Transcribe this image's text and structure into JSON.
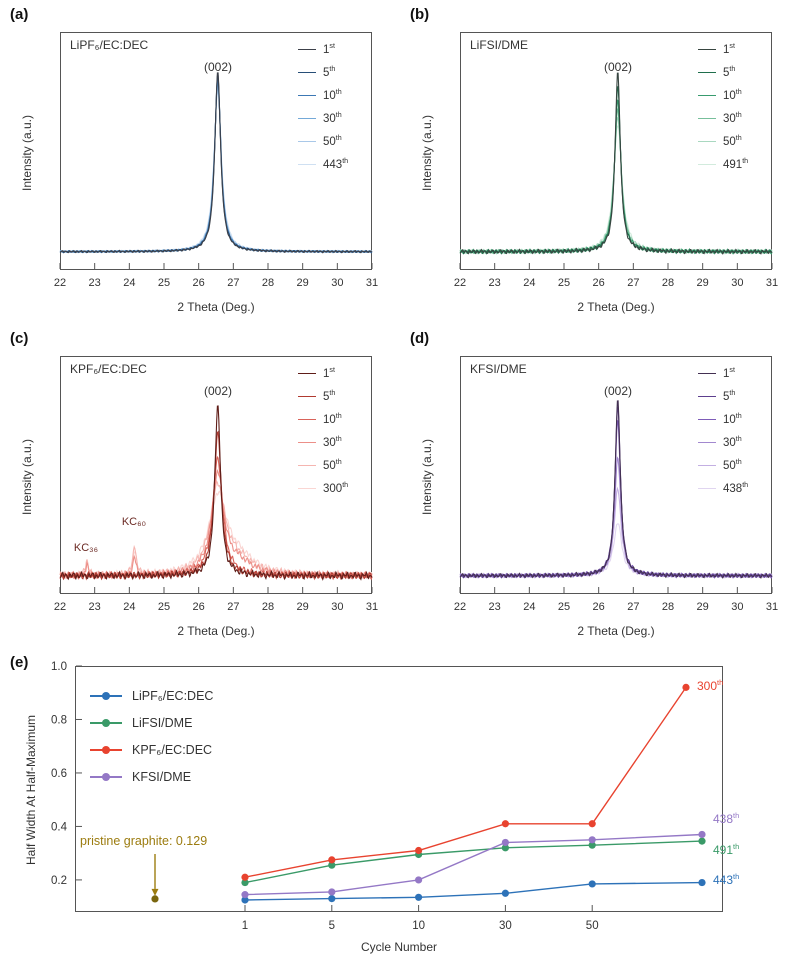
{
  "panels": {
    "a": {
      "label": "(a)",
      "electrolyte": "LiPF₆/EC:DEC",
      "peak_label": "(002)",
      "xlabel": "2 Theta (Deg.)",
      "ylabel": "Intensity (a.u.)"
    },
    "b": {
      "label": "(b)",
      "electrolyte": "LiFSI/DME",
      "peak_label": "(002)",
      "xlabel": "2 Theta (Deg.)",
      "ylabel": "Intensity (a.u.)"
    },
    "c": {
      "label": "(c)",
      "electrolyte": "KPF₆/EC:DEC",
      "peak_label": "(002)",
      "xlabel": "2 Theta (Deg.)",
      "ylabel": "Intensity (a.u.)",
      "annotations": [
        {
          "text": "KC₃₆",
          "x": 22.75
        },
        {
          "text": "KC₆₀",
          "x": 24.15
        }
      ]
    },
    "d": {
      "label": "(d)",
      "electrolyte": "KFSI/DME",
      "peak_label": "(002)",
      "xlabel": "2 Theta (Deg.)",
      "ylabel": "Intensity (a.u.)"
    },
    "e": {
      "label": "(e)",
      "xlabel": "Cycle Number",
      "ylabel": "Half Width At Half-Maximum"
    }
  },
  "chart_data": [
    {
      "panel": "a",
      "type": "line",
      "title": "LiPF₆/EC:DEC",
      "xlabel": "2 Theta (Deg.)",
      "ylabel": "Intensity (a.u.)",
      "x_range": [
        22,
        31
      ],
      "x_ticks": [
        22,
        23,
        24,
        25,
        26,
        27,
        28,
        29,
        30,
        31
      ],
      "peak_label": "(002)",
      "peak_center": 26.55,
      "noise": 0.006,
      "series": [
        {
          "cycle": "1",
          "ord": "st",
          "color": "#3c4049",
          "amp": 0.95,
          "width": 0.1
        },
        {
          "cycle": "5",
          "ord": "th",
          "color": "#274e77",
          "amp": 0.93,
          "width": 0.105
        },
        {
          "cycle": "10",
          "ord": "th",
          "color": "#3c78b4",
          "amp": 0.91,
          "width": 0.11
        },
        {
          "cycle": "30",
          "ord": "th",
          "color": "#74a9d8",
          "amp": 0.89,
          "width": 0.115
        },
        {
          "cycle": "50",
          "ord": "th",
          "color": "#a9c8e8",
          "amp": 0.87,
          "width": 0.12
        },
        {
          "cycle": "443",
          "ord": "th",
          "color": "#cfe0f2",
          "amp": 0.85,
          "width": 0.13
        }
      ]
    },
    {
      "panel": "b",
      "type": "line",
      "title": "LiFSI/DME",
      "xlabel": "2 Theta (Deg.)",
      "ylabel": "Intensity (a.u.)",
      "x_range": [
        22,
        31
      ],
      "x_ticks": [
        22,
        23,
        24,
        25,
        26,
        27,
        28,
        29,
        30,
        31
      ],
      "peak_label": "(002)",
      "peak_center": 26.55,
      "noise": 0.012,
      "series": [
        {
          "cycle": "1",
          "ord": "st",
          "color": "#374540",
          "amp": 0.95,
          "width": 0.09
        },
        {
          "cycle": "5",
          "ord": "th",
          "color": "#1f6e4c",
          "amp": 0.87,
          "width": 0.1
        },
        {
          "cycle": "10",
          "ord": "th",
          "color": "#389b6e",
          "amp": 0.8,
          "width": 0.11
        },
        {
          "cycle": "30",
          "ord": "th",
          "color": "#77bf9b",
          "amp": 0.75,
          "width": 0.12
        },
        {
          "cycle": "50",
          "ord": "th",
          "color": "#a9d8c0",
          "amp": 0.71,
          "width": 0.13
        },
        {
          "cycle": "491",
          "ord": "th",
          "color": "#d2ebdd",
          "amp": 0.67,
          "width": 0.145
        }
      ]
    },
    {
      "panel": "c",
      "type": "line",
      "title": "KPF₆/EC:DEC",
      "xlabel": "2 Theta (Deg.)",
      "ylabel": "Intensity (a.u.)",
      "x_range": [
        22,
        31
      ],
      "x_ticks": [
        22,
        23,
        24,
        25,
        26,
        27,
        28,
        29,
        30,
        31
      ],
      "peak_label": "(002)",
      "peak_center": 26.55,
      "noise": 0.02,
      "secondary_peaks": [
        {
          "label": "KC₃₆",
          "center": 22.78
        },
        {
          "label": "KC₆₀",
          "center": 24.15
        }
      ],
      "series": [
        {
          "cycle": "1",
          "ord": "st",
          "color": "#5f1d18",
          "amp": 0.9,
          "width": 0.1
        },
        {
          "cycle": "5",
          "ord": "th",
          "color": "#b03a30",
          "amp": 0.75,
          "width": 0.13
        },
        {
          "cycle": "10",
          "ord": "th",
          "color": "#d9635a",
          "amp": 0.62,
          "width": 0.17
        },
        {
          "cycle": "30",
          "ord": "th",
          "color": "#ec8f88",
          "amp": 0.52,
          "width": 0.21,
          "extras": [
            {
              "c": 22.78,
              "a": 0.05,
              "w": 0.05
            },
            {
              "c": 24.15,
              "a": 0.09,
              "w": 0.055
            },
            {
              "c": 27.15,
              "a": 0.06,
              "w": 0.5
            }
          ]
        },
        {
          "cycle": "50",
          "ord": "th",
          "color": "#f5b5b0",
          "amp": 0.46,
          "width": 0.26,
          "extras": [
            {
              "c": 22.78,
              "a": 0.08,
              "w": 0.05
            },
            {
              "c": 24.15,
              "a": 0.16,
              "w": 0.055
            },
            {
              "c": 27.15,
              "a": 0.07,
              "w": 0.5
            }
          ]
        },
        {
          "cycle": "300",
          "ord": "th",
          "color": "#fad6d3",
          "amp": 0.4,
          "width": 0.32,
          "extras": [
            {
              "c": 22.78,
              "a": 0.06,
              "w": 0.05
            },
            {
              "c": 24.15,
              "a": 0.12,
              "w": 0.06
            },
            {
              "c": 27.15,
              "a": 0.08,
              "w": 0.55
            }
          ]
        }
      ]
    },
    {
      "panel": "d",
      "type": "line",
      "title": "KFSI/DME",
      "xlabel": "2 Theta (Deg.)",
      "ylabel": "Intensity (a.u.)",
      "x_range": [
        22,
        31
      ],
      "x_ticks": [
        22,
        23,
        24,
        25,
        26,
        27,
        28,
        29,
        30,
        31
      ],
      "peak_label": "(002)",
      "peak_center": 26.55,
      "noise": 0.012,
      "series": [
        {
          "cycle": "1",
          "ord": "st",
          "color": "#433052",
          "amp": 0.93,
          "width": 0.09
        },
        {
          "cycle": "5",
          "ord": "th",
          "color": "#5d3f8e",
          "amp": 0.89,
          "width": 0.095
        },
        {
          "cycle": "10",
          "ord": "th",
          "color": "#7e5cb8",
          "amp": 0.82,
          "width": 0.1
        },
        {
          "cycle": "30",
          "ord": "th",
          "color": "#a288cf",
          "amp": 0.62,
          "width": 0.11
        },
        {
          "cycle": "50",
          "ord": "th",
          "color": "#c3afe2",
          "amp": 0.46,
          "width": 0.12
        },
        {
          "cycle": "438",
          "ord": "th",
          "color": "#e0d5f0",
          "amp": 0.28,
          "width": 0.14
        }
      ]
    },
    {
      "panel": "e",
      "type": "line",
      "xlabel": "Cycle Number",
      "ylabel": "Half Width At Half-Maximum",
      "x_categories": [
        "1",
        "5",
        "10",
        "30",
        "50"
      ],
      "ylim": [
        0.08,
        1.0
      ],
      "yticks": [
        0.2,
        0.4,
        0.6,
        0.8,
        1.0
      ],
      "series": [
        {
          "name": "LiPF₆/EC:DEC",
          "color": "#2d72b8",
          "values": [
            0.125,
            0.13,
            0.135,
            0.15,
            0.185
          ],
          "final_value": 0.19,
          "final_cycle": "443",
          "final_ord": "th"
        },
        {
          "name": "LiFSI/DME",
          "color": "#3a9a68",
          "values": [
            0.19,
            0.255,
            0.295,
            0.32,
            0.33
          ],
          "final_value": 0.345,
          "final_cycle": "491",
          "final_ord": "th"
        },
        {
          "name": "KPF₆/EC:DEC",
          "color": "#e8432f",
          "values": [
            0.21,
            0.275,
            0.31,
            0.41,
            0.41
          ],
          "final_value": 0.92,
          "final_cycle": "300",
          "final_ord": "th"
        },
        {
          "name": "KFSI/DME",
          "color": "#9478c6",
          "values": [
            0.145,
            0.155,
            0.2,
            0.34,
            0.35
          ],
          "final_value": 0.37,
          "final_cycle": "438",
          "final_ord": "th"
        }
      ],
      "pristine": {
        "text": "pristine graphite: 0.129",
        "value": 0.129,
        "color": "#9c7c10",
        "dot_color": "#7a660f"
      }
    }
  ]
}
